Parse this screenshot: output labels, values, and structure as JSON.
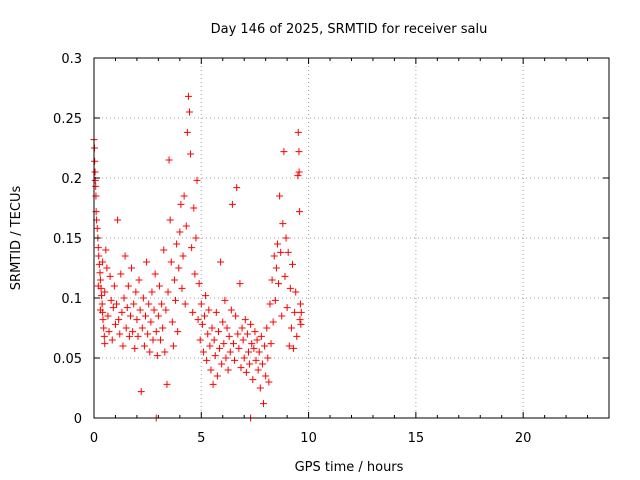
{
  "chart_data": {
    "type": "scatter",
    "title": "Day 146 of 2025, SRMTID for receiver salu",
    "xlabel": "GPS time / hours",
    "ylabel": "SRMTID / TECUs",
    "xlim": [
      0,
      24
    ],
    "ylim": [
      0,
      0.3
    ],
    "x_ticks": [
      0,
      5,
      10,
      15,
      20
    ],
    "x_tick_labels": [
      "0",
      "5",
      "10",
      "15",
      "20"
    ],
    "y_ticks": [
      0,
      0.05,
      0.1,
      0.15,
      0.2,
      0.25,
      0.3
    ],
    "y_tick_labels": [
      "0",
      "0.05",
      "0.1",
      "0.15",
      "0.2",
      "0.25",
      "0.3"
    ],
    "grid": true,
    "marker": "+",
    "marker_color": "#ff0000",
    "series": [
      {
        "name": "SRMTID",
        "points": [
          [
            0.0,
            0.232
          ],
          [
            0.02,
            0.225
          ],
          [
            0.03,
            0.214
          ],
          [
            0.05,
            0.205
          ],
          [
            0.06,
            0.198
          ],
          [
            0.08,
            0.193
          ],
          [
            0.09,
            0.185
          ],
          [
            0.1,
            0.172
          ],
          [
            0.12,
            0.165
          ],
          [
            0.15,
            0.158
          ],
          [
            0.18,
            0.15
          ],
          [
            0.2,
            0.142
          ],
          [
            0.22,
            0.135
          ],
          [
            0.25,
            0.128
          ],
          [
            0.28,
            0.121
          ],
          [
            0.3,
            0.115
          ],
          [
            0.33,
            0.108
          ],
          [
            0.35,
            0.102
          ],
          [
            0.38,
            0.095
          ],
          [
            0.4,
            0.088
          ],
          [
            0.42,
            0.082
          ],
          [
            0.45,
            0.075
          ],
          [
            0.48,
            0.068
          ],
          [
            0.5,
            0.062
          ],
          [
            0.2,
            0.11
          ],
          [
            0.3,
            0.09
          ],
          [
            0.4,
            0.13
          ],
          [
            0.5,
            0.105
          ],
          [
            0.55,
            0.14
          ],
          [
            0.6,
            0.125
          ],
          [
            0.65,
            0.085
          ],
          [
            0.7,
            0.072
          ],
          [
            0.75,
            0.118
          ],
          [
            0.8,
            0.098
          ],
          [
            0.85,
            0.065
          ],
          [
            0.9,
            0.092
          ],
          [
            0.95,
            0.11
          ],
          [
            1.0,
            0.078
          ],
          [
            1.05,
            0.095
          ],
          [
            1.1,
            0.165
          ],
          [
            1.15,
            0.082
          ],
          [
            1.2,
            0.07
          ],
          [
            1.25,
            0.12
          ],
          [
            1.3,
            0.088
          ],
          [
            1.35,
            0.06
          ],
          [
            1.4,
            0.1
          ],
          [
            1.45,
            0.135
          ],
          [
            1.5,
            0.075
          ],
          [
            1.55,
            0.092
          ],
          [
            1.6,
            0.11
          ],
          [
            1.65,
            0.068
          ],
          [
            1.7,
            0.085
          ],
          [
            1.75,
            0.125
          ],
          [
            1.8,
            0.072
          ],
          [
            1.85,
            0.095
          ],
          [
            1.9,
            0.058
          ],
          [
            1.95,
            0.105
          ],
          [
            2.0,
            0.082
          ],
          [
            2.05,
            0.068
          ],
          [
            2.1,
            0.115
          ],
          [
            2.15,
            0.09
          ],
          [
            2.2,
            0.022
          ],
          [
            2.25,
            0.075
          ],
          [
            2.3,
            0.1
          ],
          [
            2.35,
            0.06
          ],
          [
            2.4,
            0.085
          ],
          [
            2.45,
            0.13
          ],
          [
            2.5,
            0.07
          ],
          [
            2.55,
            0.095
          ],
          [
            2.6,
            0.055
          ],
          [
            2.65,
            0.08
          ],
          [
            2.7,
            0.105
          ],
          [
            2.75,
            0.065
          ],
          [
            2.8,
            0.09
          ],
          [
            2.85,
            0.12
          ],
          [
            2.9,
            0.072
          ],
          [
            2.95,
            0.052
          ],
          [
            3.0,
            0.085
          ],
          [
            3.05,
            0.11
          ],
          [
            3.1,
            0.065
          ],
          [
            3.15,
            0.095
          ],
          [
            3.2,
            0.075
          ],
          [
            3.25,
            0.14
          ],
          [
            3.3,
            0.055
          ],
          [
            3.35,
            0.09
          ],
          [
            3.4,
            0.028
          ],
          [
            3.45,
            0.105
          ],
          [
            3.5,
            0.215
          ],
          [
            3.55,
            0.165
          ],
          [
            3.6,
            0.13
          ],
          [
            3.65,
            0.08
          ],
          [
            3.7,
            0.06
          ],
          [
            3.75,
            0.115
          ],
          [
            3.8,
            0.098
          ],
          [
            3.85,
            0.145
          ],
          [
            3.9,
            0.072
          ],
          [
            3.95,
            0.125
          ],
          [
            4.0,
            0.155
          ],
          [
            4.05,
            0.178
          ],
          [
            4.1,
            0.108
          ],
          [
            4.15,
            0.135
          ],
          [
            4.2,
            0.185
          ],
          [
            4.25,
            0.095
          ],
          [
            4.3,
            0.16
          ],
          [
            4.35,
            0.238
          ],
          [
            4.4,
            0.268
          ],
          [
            4.45,
            0.255
          ],
          [
            4.5,
            0.22
          ],
          [
            4.55,
            0.142
          ],
          [
            4.6,
            0.088
          ],
          [
            4.65,
            0.175
          ],
          [
            4.7,
            0.12
          ],
          [
            4.75,
            0.15
          ],
          [
            4.8,
            0.198
          ],
          [
            4.85,
            0.082
          ],
          [
            4.9,
            0.112
          ],
          [
            4.95,
            0.065
          ],
          [
            5.0,
            0.095
          ],
          [
            5.05,
            0.078
          ],
          [
            5.1,
            0.055
          ],
          [
            5.15,
            0.085
          ],
          [
            5.2,
            0.102
          ],
          [
            5.25,
            0.048
          ],
          [
            5.3,
            0.07
          ],
          [
            5.35,
            0.09
          ],
          [
            5.4,
            0.06
          ],
          [
            5.45,
            0.04
          ],
          [
            5.5,
            0.075
          ],
          [
            5.55,
            0.028
          ],
          [
            5.6,
            0.065
          ],
          [
            5.65,
            0.052
          ],
          [
            5.7,
            0.088
          ],
          [
            5.75,
            0.035
          ],
          [
            5.8,
            0.072
          ],
          [
            5.85,
            0.058
          ],
          [
            5.9,
            0.13
          ],
          [
            5.95,
            0.045
          ],
          [
            6.0,
            0.08
          ],
          [
            6.05,
            0.062
          ],
          [
            6.1,
            0.098
          ],
          [
            6.15,
            0.05
          ],
          [
            6.2,
            0.075
          ],
          [
            6.25,
            0.04
          ],
          [
            6.3,
            0.068
          ],
          [
            6.35,
            0.055
          ],
          [
            6.4,
            0.09
          ],
          [
            6.45,
            0.178
          ],
          [
            6.5,
            0.062
          ],
          [
            6.55,
            0.048
          ],
          [
            6.6,
            0.085
          ],
          [
            6.65,
            0.192
          ],
          [
            6.7,
            0.07
          ],
          [
            6.75,
            0.058
          ],
          [
            6.8,
            0.112
          ],
          [
            6.85,
            0.042
          ],
          [
            6.9,
            0.075
          ],
          [
            6.95,
            0.065
          ],
          [
            7.0,
            0.05
          ],
          [
            7.05,
            0.082
          ],
          [
            7.1,
            0.038
          ],
          [
            7.15,
            0.07
          ],
          [
            7.2,
            0.055
          ],
          [
            7.25,
            0.045
          ],
          [
            7.3,
            0.078
          ],
          [
            7.35,
            0.062
          ],
          [
            7.4,
            0.032
          ],
          [
            7.45,
            0.058
          ],
          [
            7.5,
            0.072
          ],
          [
            7.55,
            0.048
          ],
          [
            7.6,
            0.065
          ],
          [
            7.65,
            0.04
          ],
          [
            7.7,
            0.055
          ],
          [
            7.75,
            0.025
          ],
          [
            7.8,
            0.068
          ],
          [
            7.85,
            0.045
          ],
          [
            7.9,
            0.012
          ],
          [
            7.95,
            0.06
          ],
          [
            8.0,
            0.035
          ],
          [
            8.05,
            0.075
          ],
          [
            8.1,
            0.05
          ],
          [
            8.15,
            0.03
          ],
          [
            8.2,
            0.095
          ],
          [
            8.25,
            0.062
          ],
          [
            8.3,
            0.115
          ],
          [
            8.35,
            0.08
          ],
          [
            8.4,
            0.135
          ],
          [
            8.45,
            0.098
          ],
          [
            8.5,
            0.125
          ],
          [
            8.55,
            0.145
          ],
          [
            8.6,
            0.112
          ],
          [
            8.65,
            0.185
          ],
          [
            8.7,
            0.138
          ],
          [
            8.75,
            0.085
          ],
          [
            8.8,
            0.162
          ],
          [
            8.85,
            0.222
          ],
          [
            8.9,
            0.118
          ],
          [
            8.95,
            0.15
          ],
          [
            9.0,
            0.092
          ],
          [
            9.05,
            0.138
          ],
          [
            9.1,
            0.06
          ],
          [
            9.15,
            0.108
          ],
          [
            9.2,
            0.075
          ],
          [
            9.25,
            0.128
          ],
          [
            9.3,
            0.058
          ],
          [
            9.35,
            0.088
          ],
          [
            9.4,
            0.105
          ],
          [
            9.45,
            0.068
          ],
          [
            9.5,
            0.202
          ],
          [
            9.52,
            0.238
          ],
          [
            9.55,
            0.222
          ],
          [
            9.56,
            0.205
          ],
          [
            9.58,
            0.172
          ],
          [
            9.6,
            0.082
          ],
          [
            9.62,
            0.095
          ],
          [
            9.64,
            0.078
          ],
          [
            9.66,
            0.088
          ],
          [
            2.9,
            0.0
          ],
          [
            7.3,
            0.0
          ]
        ]
      }
    ]
  }
}
